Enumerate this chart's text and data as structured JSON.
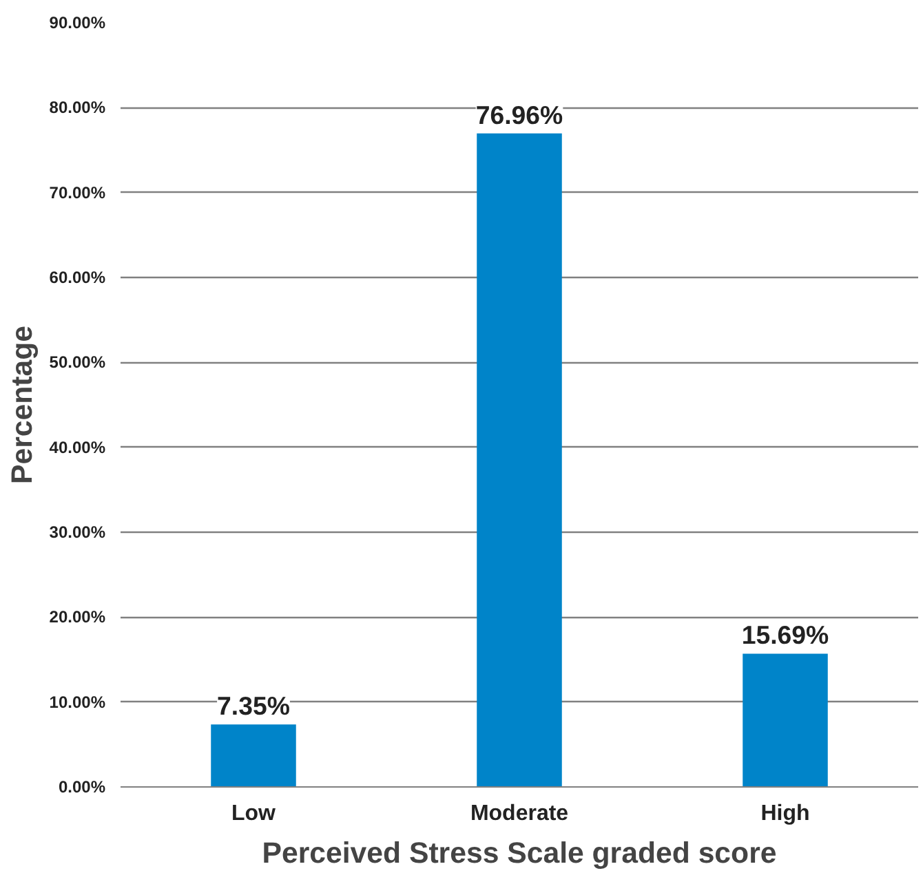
{
  "chart_data": {
    "type": "bar",
    "xlabel": "Perceived Stress Scale graded score",
    "ylabel": "Percentage",
    "categories": [
      "Low",
      "Moderate",
      "High"
    ],
    "values": [
      7.35,
      76.96,
      15.69
    ],
    "value_labels": [
      "7.35%",
      "76.96%",
      "15.69%"
    ],
    "color": "#0084c9",
    "ylim": [
      0,
      90
    ],
    "yticks": [
      {
        "value": 0,
        "label": "0.00%"
      },
      {
        "value": 10,
        "label": "10.00%"
      },
      {
        "value": 20,
        "label": "20.00%"
      },
      {
        "value": 30,
        "label": "30.00%"
      },
      {
        "value": 40,
        "label": "40.00%"
      },
      {
        "value": 50,
        "label": "50.00%"
      },
      {
        "value": 60,
        "label": "60.00%"
      },
      {
        "value": 70,
        "label": "70.00%"
      },
      {
        "value": 80,
        "label": "80.00%"
      },
      {
        "value": 90,
        "label": "90.00%"
      }
    ],
    "grid": "y"
  }
}
